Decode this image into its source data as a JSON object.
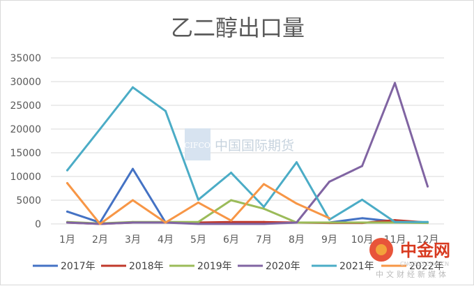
{
  "chart_data": {
    "type": "line",
    "title": "乙二醇出口量",
    "xlabel": "",
    "ylabel": "",
    "categories": [
      "1月",
      "2月",
      "3月",
      "4月",
      "5月",
      "6月",
      "7月",
      "8月",
      "9月",
      "10月",
      "11月",
      "12月"
    ],
    "ylim": [
      0,
      35000
    ],
    "yticks": [
      0,
      5000,
      10000,
      15000,
      20000,
      25000,
      30000,
      35000
    ],
    "grid": true,
    "legend": "bottom",
    "series": [
      {
        "name": "2017年",
        "color": "#4472c4",
        "values": [
          2600,
          300,
          11600,
          300,
          200,
          300,
          200,
          300,
          300,
          1200,
          500,
          300
        ]
      },
      {
        "name": "2018年",
        "color": "#c0392b",
        "values": [
          300,
          0,
          300,
          300,
          300,
          400,
          400,
          300,
          200,
          200,
          800,
          300
        ]
      },
      {
        "name": "2019年",
        "color": "#9bbb59",
        "values": [
          400,
          100,
          400,
          400,
          400,
          5000,
          3200,
          300,
          300,
          300,
          300,
          200
        ]
      },
      {
        "name": "2020年",
        "color": "#8064a2",
        "values": [
          300,
          0,
          300,
          300,
          0,
          0,
          0,
          300,
          8900,
          12200,
          29700,
          7900
        ]
      },
      {
        "name": "2021年",
        "color": "#4bacc6",
        "values": [
          11300,
          20000,
          28800,
          23800,
          5100,
          10800,
          3600,
          13000,
          900,
          5100,
          400,
          400
        ]
      },
      {
        "name": "2022年",
        "color": "#f79646",
        "values": [
          8600,
          0,
          5000,
          300,
          4500,
          700,
          8400,
          4300,
          1200,
          null,
          null,
          null
        ]
      }
    ]
  },
  "watermark": {
    "cifco": "CIFCO",
    "text": "中国国际期货"
  },
  "logo": {
    "brand": "中金网",
    "url": "CNGOLD.COM.CN",
    "slogan": "中文财经新媒体"
  }
}
